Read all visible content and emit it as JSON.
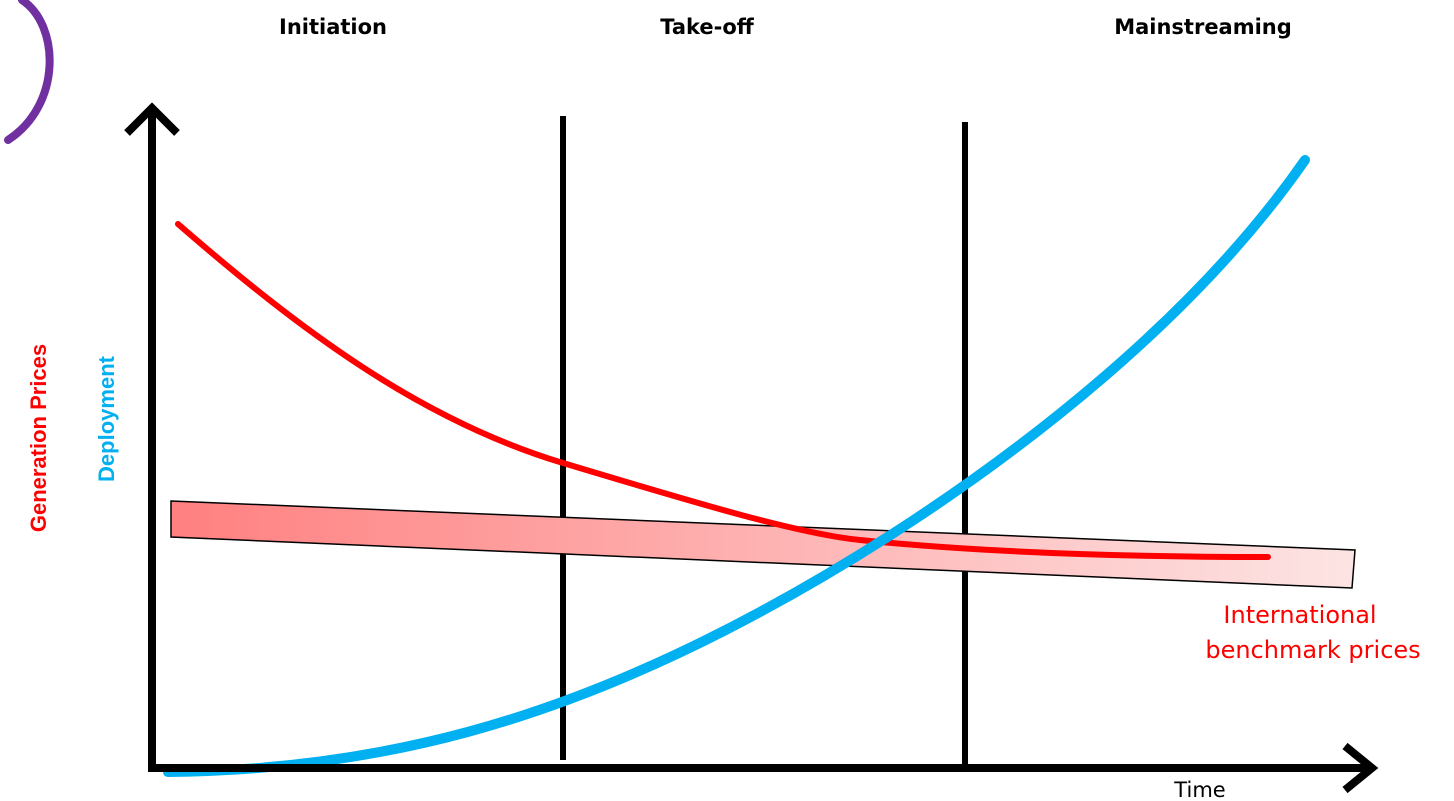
{
  "phases": {
    "initiation": "Initiation",
    "takeoff": "Take-off",
    "mainstreaming": "Mainstreaming"
  },
  "axes": {
    "x_label": "Time",
    "y_label_prices": "Generation Prices",
    "y_label_deployment": "Deployment"
  },
  "benchmark": {
    "line1": "International",
    "line2": "benchmark prices"
  },
  "colors": {
    "prices": "#ff0000",
    "deployment": "#00b0f0",
    "axis": "#000000",
    "corner_arc": "#7030a0",
    "benchmark_band_start": "#ff8080",
    "benchmark_band_end": "#fde4e4"
  }
}
